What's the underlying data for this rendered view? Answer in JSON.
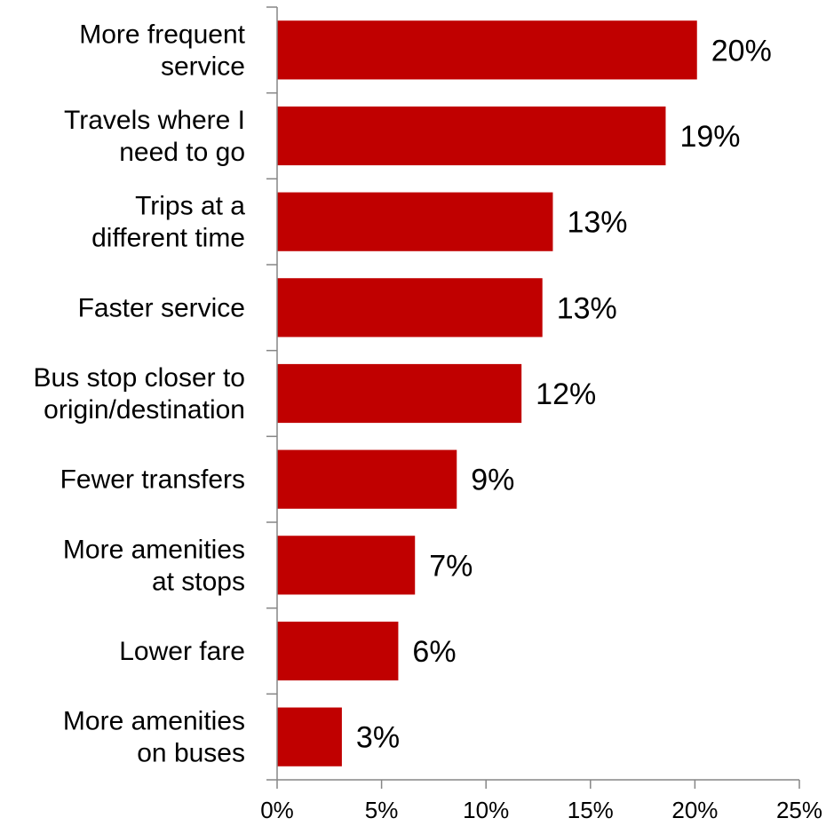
{
  "chart_data": {
    "type": "bar",
    "orientation": "horizontal",
    "categories": [
      [
        "More frequent",
        "service"
      ],
      [
        "Travels where I",
        "need to go"
      ],
      [
        "Trips at a",
        "different time"
      ],
      [
        "Faster service"
      ],
      [
        "Bus stop closer to",
        "origin/destination"
      ],
      [
        "Fewer transfers"
      ],
      [
        "More amenities",
        "at stops"
      ],
      [
        "Lower fare"
      ],
      [
        "More amenities",
        "on buses"
      ]
    ],
    "values": [
      20.1,
      18.6,
      13.2,
      12.7,
      11.7,
      8.6,
      6.6,
      5.8,
      3.1
    ],
    "value_labels": [
      "20%",
      "19%",
      "13%",
      "13%",
      "12%",
      "9%",
      "7%",
      "6%",
      "3%"
    ],
    "xlim": [
      0,
      25
    ],
    "x_ticks": [
      0,
      5,
      10,
      15,
      20,
      25
    ],
    "x_tick_labels": [
      "0%",
      "5%",
      "10%",
      "15%",
      "20%",
      "25%"
    ],
    "bar_color": "#c00000",
    "axis_color": "#868686",
    "grid": false,
    "legend": "none",
    "title": "",
    "xlabel": "",
    "ylabel": ""
  }
}
